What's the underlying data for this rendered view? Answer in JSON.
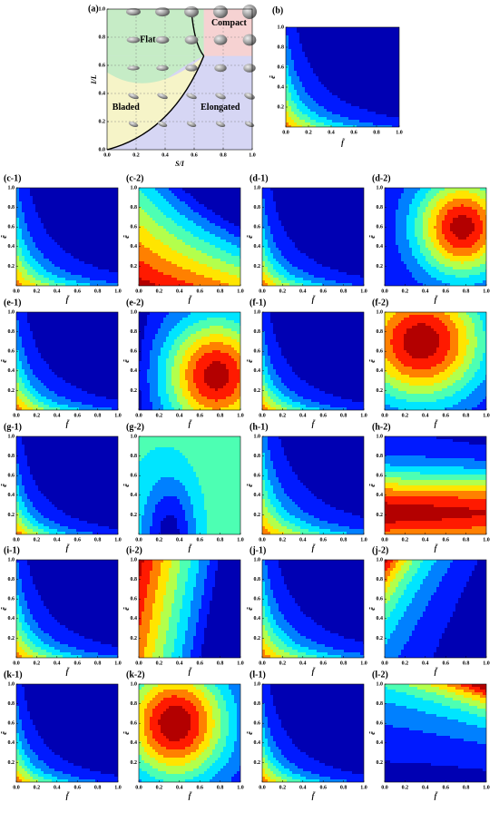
{
  "figure": {
    "panel_a": {
      "label": "(a)",
      "xlabel": "S/I",
      "ylabel": "I/L",
      "regions": [
        "Flat",
        "Compact",
        "Bladed",
        "Elongated"
      ]
    },
    "panel_b": {
      "label": "(b)"
    },
    "small_panels": [
      "(c-1)",
      "(c-2)",
      "(d-1)",
      "(d-2)",
      "(e-1)",
      "(e-2)",
      "(f-1)",
      "(f-2)",
      "(g-1)",
      "(g-2)",
      "(h-1)",
      "(h-2)",
      "(i-1)",
      "(i-2)",
      "(j-1)",
      "(j-2)",
      "(k-1)",
      "(k-2)",
      "(l-1)",
      "(l-2)"
    ],
    "xlabel": "f̃",
    "ylabel": "ẽ",
    "ticks": [
      {
        "value": 0,
        "label": "0.0"
      },
      0.2,
      0.4,
      0.6,
      0.8,
      {
        "value": 1,
        "label": "1.0"
      }
    ]
  }
}
